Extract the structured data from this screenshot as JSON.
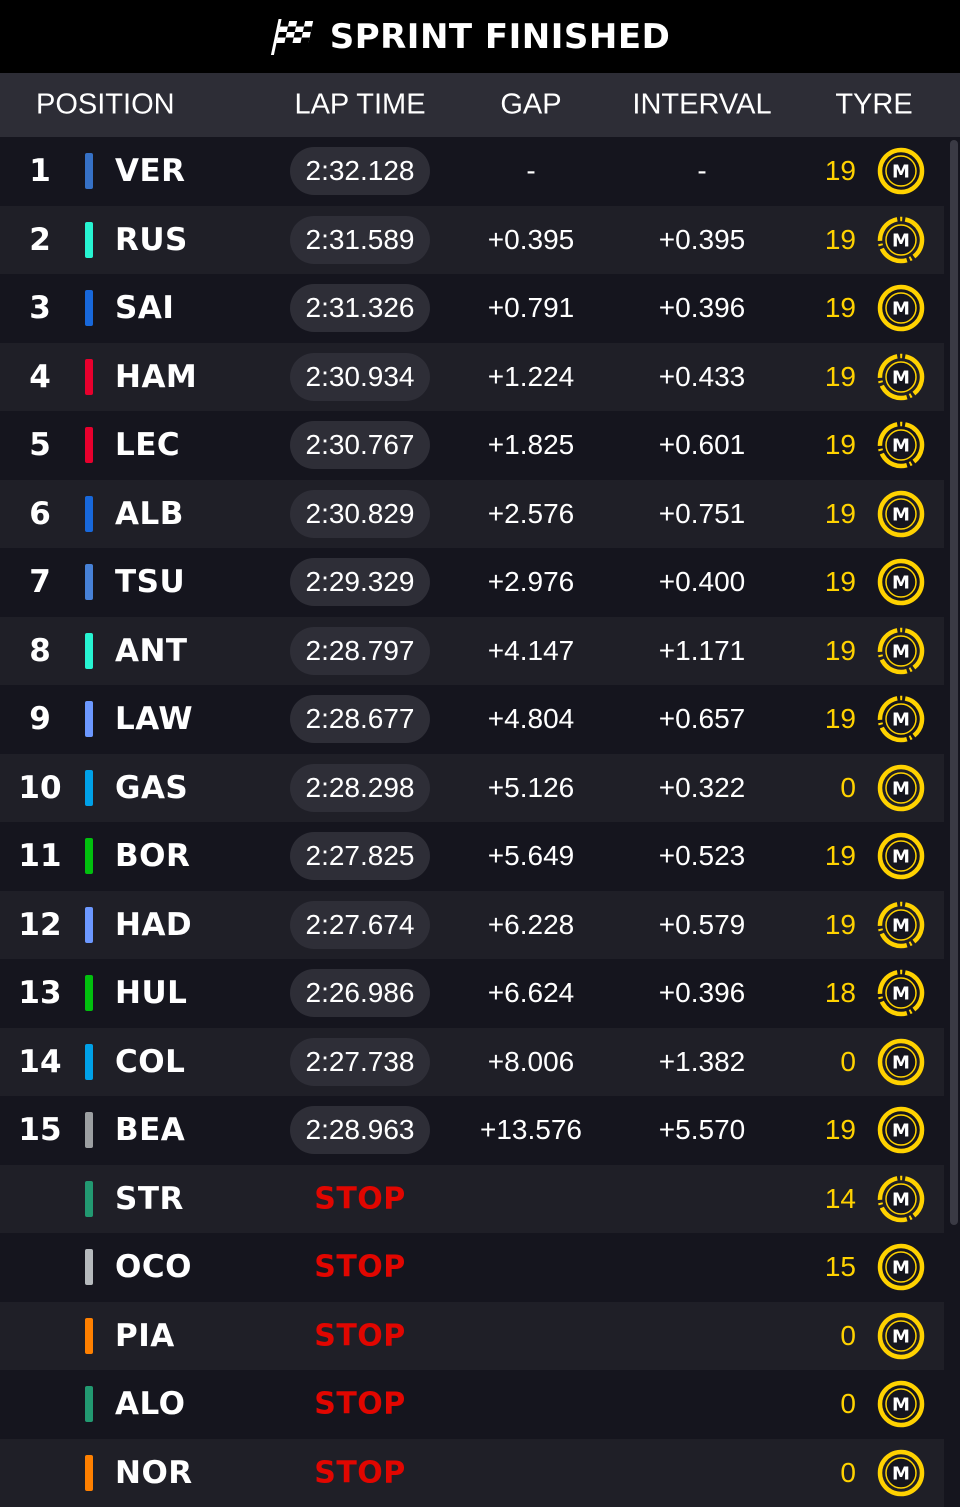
{
  "title": "SPRINT FINISHED",
  "header": {
    "position": "POSITION",
    "lap_time": "LAP TIME",
    "gap": "GAP",
    "interval": "INTERVAL",
    "tyre": "TYRE"
  },
  "colors": {
    "stop": "#e10600",
    "tyre_medium": "#ffd200",
    "background": "#15151e",
    "header": "#2d2d36"
  },
  "drivers": [
    {
      "pos": "1",
      "code": "VER",
      "team_color": "#3671c6",
      "lap": "2:32.128",
      "gap": "-",
      "interval": "-",
      "laps": "19",
      "tyre": "M",
      "tyre_icon": "medium-tyre-icon"
    },
    {
      "pos": "2",
      "code": "RUS",
      "team_color": "#27f4d2",
      "lap": "2:31.589",
      "gap": "+0.395",
      "interval": "+0.395",
      "laps": "19",
      "tyre": "M",
      "tyre_icon": "medium-tyre-used-icon"
    },
    {
      "pos": "3",
      "code": "SAI",
      "team_color": "#1868db",
      "lap": "2:31.326",
      "gap": "+0.791",
      "interval": "+0.396",
      "laps": "19",
      "tyre": "M",
      "tyre_icon": "medium-tyre-icon"
    },
    {
      "pos": "4",
      "code": "HAM",
      "team_color": "#e8002d",
      "lap": "2:30.934",
      "gap": "+1.224",
      "interval": "+0.433",
      "laps": "19",
      "tyre": "M",
      "tyre_icon": "medium-tyre-used-icon"
    },
    {
      "pos": "5",
      "code": "LEC",
      "team_color": "#e8002d",
      "lap": "2:30.767",
      "gap": "+1.825",
      "interval": "+0.601",
      "laps": "19",
      "tyre": "M",
      "tyre_icon": "medium-tyre-used-icon"
    },
    {
      "pos": "6",
      "code": "ALB",
      "team_color": "#1868db",
      "lap": "2:30.829",
      "gap": "+2.576",
      "interval": "+0.751",
      "laps": "19",
      "tyre": "M",
      "tyre_icon": "medium-tyre-icon"
    },
    {
      "pos": "7",
      "code": "TSU",
      "team_color": "#4781d7",
      "lap": "2:29.329",
      "gap": "+2.976",
      "interval": "+0.400",
      "laps": "19",
      "tyre": "M",
      "tyre_icon": "medium-tyre-icon"
    },
    {
      "pos": "8",
      "code": "ANT",
      "team_color": "#27f4d2",
      "lap": "2:28.797",
      "gap": "+4.147",
      "interval": "+1.171",
      "laps": "19",
      "tyre": "M",
      "tyre_icon": "medium-tyre-used-icon"
    },
    {
      "pos": "9",
      "code": "LAW",
      "team_color": "#6c98ff",
      "lap": "2:28.677",
      "gap": "+4.804",
      "interval": "+0.657",
      "laps": "19",
      "tyre": "M",
      "tyre_icon": "medium-tyre-used-icon"
    },
    {
      "pos": "10",
      "code": "GAS",
      "team_color": "#00a1e8",
      "lap": "2:28.298",
      "gap": "+5.126",
      "interval": "+0.322",
      "laps": "0",
      "tyre": "M",
      "tyre_icon": "medium-tyre-icon"
    },
    {
      "pos": "11",
      "code": "BOR",
      "team_color": "#01c00e",
      "lap": "2:27.825",
      "gap": "+5.649",
      "interval": "+0.523",
      "laps": "19",
      "tyre": "M",
      "tyre_icon": "medium-tyre-icon"
    },
    {
      "pos": "12",
      "code": "HAD",
      "team_color": "#6c98ff",
      "lap": "2:27.674",
      "gap": "+6.228",
      "interval": "+0.579",
      "laps": "19",
      "tyre": "M",
      "tyre_icon": "medium-tyre-used-icon"
    },
    {
      "pos": "13",
      "code": "HUL",
      "team_color": "#01c00e",
      "lap": "2:26.986",
      "gap": "+6.624",
      "interval": "+0.396",
      "laps": "18",
      "tyre": "M",
      "tyre_icon": "medium-tyre-used-icon"
    },
    {
      "pos": "14",
      "code": "COL",
      "team_color": "#00a1e8",
      "lap": "2:27.738",
      "gap": "+8.006",
      "interval": "+1.382",
      "laps": "0",
      "tyre": "M",
      "tyre_icon": "medium-tyre-icon"
    },
    {
      "pos": "15",
      "code": "BEA",
      "team_color": "#9c9fa2",
      "lap": "2:28.963",
      "gap": "+13.576",
      "interval": "+5.570",
      "laps": "19",
      "tyre": "M",
      "tyre_icon": "medium-tyre-icon"
    },
    {
      "pos": "",
      "code": "STR",
      "team_color": "#229971",
      "lap": "",
      "status": "STOP",
      "gap": "",
      "interval": "",
      "laps": "14",
      "tyre": "M",
      "tyre_icon": "medium-tyre-used-icon"
    },
    {
      "pos": "",
      "code": "OCO",
      "team_color": "#b6babd",
      "lap": "",
      "status": "STOP",
      "gap": "",
      "interval": "",
      "laps": "15",
      "tyre": "M",
      "tyre_icon": "medium-tyre-icon"
    },
    {
      "pos": "",
      "code": "PIA",
      "team_color": "#ff8000",
      "lap": "",
      "status": "STOP",
      "gap": "",
      "interval": "",
      "laps": "0",
      "tyre": "M",
      "tyre_icon": "medium-tyre-icon"
    },
    {
      "pos": "",
      "code": "ALO",
      "team_color": "#229971",
      "lap": "",
      "status": "STOP",
      "gap": "",
      "interval": "",
      "laps": "0",
      "tyre": "M",
      "tyre_icon": "medium-tyre-icon"
    },
    {
      "pos": "",
      "code": "NOR",
      "team_color": "#ff8000",
      "lap": "",
      "status": "STOP",
      "gap": "",
      "interval": "",
      "laps": "0",
      "tyre": "M",
      "tyre_icon": "medium-tyre-icon"
    }
  ]
}
